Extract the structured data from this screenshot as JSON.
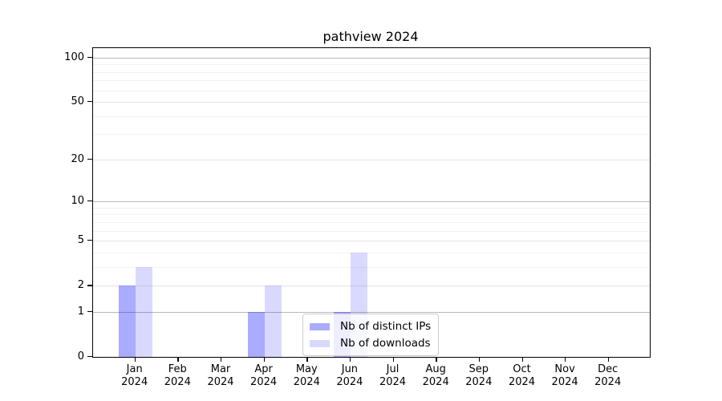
{
  "chart_data": {
    "type": "bar",
    "title": "pathview 2024",
    "categories": [
      "Jan",
      "Feb",
      "Mar",
      "Apr",
      "May",
      "Jun",
      "Jul",
      "Aug",
      "Sep",
      "Oct",
      "Nov",
      "Dec"
    ],
    "x_year_line": "2024",
    "series": [
      {
        "name": "Nb of distinct IPs",
        "color": "rgba(0,0,255,0.33)",
        "values": [
          2,
          0,
          0,
          1,
          0,
          1,
          0,
          0,
          0,
          0,
          0,
          0
        ]
      },
      {
        "name": "Nb of downloads",
        "color": "rgba(0,0,255,0.15)",
        "values": [
          3,
          0,
          0,
          2,
          0,
          4,
          0,
          0,
          0,
          0,
          0,
          0
        ]
      }
    ],
    "y_scale": "log10(1+v)",
    "y_ticks": [
      100,
      50,
      20,
      10,
      5,
      2,
      1,
      0
    ],
    "y_minor_gridlines": [
      3,
      4,
      6,
      7,
      8,
      9,
      30,
      40,
      60,
      70,
      80,
      90
    ],
    "y_emphasized_gridlines": [
      1,
      10,
      100
    ],
    "y_max": 116,
    "ylim": [
      0,
      116
    ],
    "grid": true,
    "legend_position": "lower-center",
    "colors": {
      "spine": "#000000",
      "grid_minor": "#f2f2f2",
      "grid_tick": "#e4e4e4",
      "grid_emphasized": "#b9b9b9",
      "background": "#ffffff"
    }
  }
}
